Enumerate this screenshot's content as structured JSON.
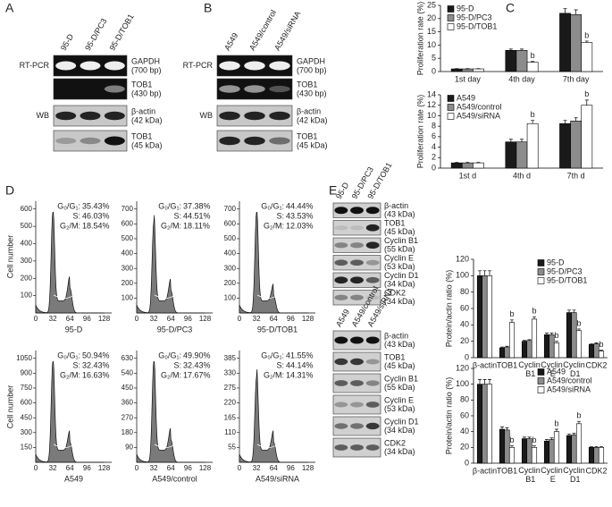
{
  "panel_labels": [
    "A",
    "B",
    "C",
    "D",
    "E"
  ],
  "blot_a": {
    "lanes": [
      "95-D",
      "95-D/PC3",
      "95-D/TOB1"
    ],
    "methods": [
      "RT-PCR",
      "WB"
    ],
    "rows": [
      {
        "name": "GAPDH",
        "size": "(700 bp)"
      },
      {
        "name": "TOB1",
        "size": "(430 bp)"
      },
      {
        "name": "β-actin",
        "size": "(42 kDa)"
      },
      {
        "name": "TOB1",
        "size": "(45 kDa)"
      }
    ]
  },
  "blot_b": {
    "lanes": [
      "A549",
      "A549/control",
      "A549/siRNA"
    ],
    "methods": [
      "RT-PCR",
      "WB"
    ],
    "rows": [
      {
        "name": "GAPDH",
        "size": "(700 bp)"
      },
      {
        "name": "TOB1",
        "size": "(430 bp)"
      },
      {
        "name": "β-actin",
        "size": "(42 kDa)"
      },
      {
        "name": "TOB1",
        "size": "(45 kDa)"
      }
    ]
  },
  "flow": {
    "phases": [
      "G₀/G₁:",
      "S:",
      "G₂/M:"
    ],
    "ylabel": "Cell number",
    "xticks": [
      "0",
      "32",
      "64",
      "96",
      "128"
    ],
    "panels": [
      {
        "name": "95-D",
        "stats": [
          "35.43%",
          "46.03%",
          "18.54%"
        ],
        "yticks": [
          "600",
          "500",
          "400",
          "300",
          "200",
          "100"
        ]
      },
      {
        "name": "95-D/PC3",
        "stats": [
          "37.38%",
          "44.51%",
          "18.11%"
        ],
        "yticks": [
          "700",
          "600",
          "500",
          "400",
          "300",
          "200",
          "100"
        ]
      },
      {
        "name": "95-D/TOB1",
        "stats": [
          "44.44%",
          "43.53%",
          "12.03%"
        ],
        "yticks": [
          "700",
          "600",
          "500",
          "400",
          "300",
          "200",
          "100"
        ]
      },
      {
        "name": "A549",
        "stats": [
          "50.94%",
          "32.43%",
          "16.63%"
        ],
        "yticks": [
          "1050",
          "900",
          "750",
          "600",
          "450",
          "300",
          "150"
        ]
      },
      {
        "name": "A549/control",
        "stats": [
          "49.90%",
          "32.43%",
          "17.67%"
        ],
        "yticks": [
          "630",
          "540",
          "450",
          "360",
          "270",
          "180",
          "90"
        ]
      },
      {
        "name": "A549/siRNA",
        "stats": [
          "41.55%",
          "44.14%",
          "14.31%"
        ],
        "yticks": [
          "385",
          "330",
          "275",
          "220",
          "165",
          "110",
          "55"
        ]
      }
    ]
  },
  "blot_e": [
    {
      "lanes": [
        "95-D",
        "95-D/PC3",
        "95-D/TOB1"
      ],
      "rows": [
        {
          "name": "β-actin",
          "size": "(43 kDa)"
        },
        {
          "name": "TOB1",
          "size": "(45 kDa)"
        },
        {
          "name": "Cyclin B1",
          "size": "(55 kDa)"
        },
        {
          "name": "Cyclin E",
          "size": "(53 kDa)"
        },
        {
          "name": "Cyclin D1",
          "size": "(34 kDa)"
        },
        {
          "name": "CDK2",
          "size": "(34 kDa)"
        }
      ]
    },
    {
      "lanes": [
        "A549",
        "A549/control",
        "A549/siRNA"
      ],
      "rows": [
        {
          "name": "β-actin",
          "size": "(43 kDa)"
        },
        {
          "name": "TOB1",
          "size": "(45 kDa)"
        },
        {
          "name": "Cyclin B1",
          "size": "(55 kDa)"
        },
        {
          "name": "Cyclin E",
          "size": "(53 kDa)"
        },
        {
          "name": "Cyclin D1",
          "size": "(34 kDa)"
        },
        {
          "name": "CDK2",
          "size": "(34 kDa)"
        }
      ]
    }
  ],
  "chart_data": [
    {
      "type": "bar",
      "ylabel": "Proliferation rate (%)",
      "categories": [
        "1st day",
        "4th day",
        "7th day"
      ],
      "ylim": [
        0,
        25
      ],
      "yticks": [
        0,
        5,
        10,
        15,
        20,
        25
      ],
      "legend": "upper left",
      "series": [
        {
          "name": "95-D",
          "color": "#1a1a1a",
          "values": [
            1,
            8,
            22
          ],
          "errors": [
            0.1,
            0.5,
            1.8
          ],
          "significance": [
            null,
            null,
            null
          ]
        },
        {
          "name": "95-D/PC3",
          "color": "#8c8c8c",
          "values": [
            1,
            8,
            21.5
          ],
          "errors": [
            0.1,
            0.5,
            1.8
          ],
          "significance": [
            null,
            null,
            null
          ]
        },
        {
          "name": "95-D/TOB1",
          "color": "#ffffff",
          "values": [
            1,
            3.5,
            11
          ],
          "errors": [
            0.1,
            0.3,
            0.5
          ],
          "significance": [
            null,
            "b",
            "b"
          ]
        }
      ]
    },
    {
      "type": "bar",
      "ylabel": "Proliferation rate (%)",
      "categories": [
        "1st d",
        "4th d",
        "7th d"
      ],
      "ylim": [
        0,
        14
      ],
      "yticks": [
        0,
        2,
        4,
        6,
        8,
        10,
        12,
        14
      ],
      "legend": "upper left",
      "series": [
        {
          "name": "A549",
          "color": "#1a1a1a",
          "values": [
            1,
            5,
            8.5
          ],
          "errors": [
            0.1,
            0.5,
            0.6
          ],
          "significance": [
            null,
            null,
            null
          ]
        },
        {
          "name": "A549/control",
          "color": "#8c8c8c",
          "values": [
            1,
            5,
            9
          ],
          "errors": [
            0.1,
            0.5,
            0.6
          ],
          "significance": [
            null,
            null,
            null
          ]
        },
        {
          "name": "A549/siRNA",
          "color": "#ffffff",
          "values": [
            1,
            8.5,
            12
          ],
          "errors": [
            0.1,
            0.6,
            1
          ],
          "significance": [
            null,
            "b",
            "b"
          ]
        }
      ]
    },
    {
      "type": "bar",
      "ylabel": "Protein/actin ratio (%)",
      "categories": [
        "β-actin",
        "TOB1",
        "Cyclin B1",
        "Cyclin E",
        "Cyclin D1",
        "CDK2"
      ],
      "ylim": [
        0,
        120
      ],
      "yticks": [
        0,
        20,
        40,
        60,
        80,
        100,
        120
      ],
      "legend": "upper right",
      "series": [
        {
          "name": "95-D",
          "color": "#1a1a1a",
          "values": [
            100,
            12,
            20,
            28,
            55,
            16
          ],
          "errors": [
            6,
            1,
            1,
            2,
            3,
            1
          ],
          "significance": [
            null,
            null,
            null,
            null,
            null,
            null
          ]
        },
        {
          "name": "95-D/PC3",
          "color": "#8c8c8c",
          "values": [
            100,
            13,
            21,
            28,
            55,
            17
          ],
          "errors": [
            6,
            1,
            1,
            2,
            3,
            1
          ],
          "significance": [
            null,
            null,
            null,
            null,
            null,
            null
          ]
        },
        {
          "name": "95-D/TOB1",
          "color": "#ffffff",
          "values": [
            100,
            43,
            47,
            18,
            33,
            8
          ],
          "errors": [
            6,
            3,
            3,
            2,
            2,
            1
          ],
          "significance": [
            null,
            "b",
            "b",
            "b",
            "b",
            "b"
          ]
        }
      ]
    },
    {
      "type": "bar",
      "ylabel": "Protein/actin ratio (%)",
      "categories": [
        "β-actin",
        "TOB1",
        "Cyclin B1",
        "Cyclin E",
        "Cyclin D1",
        "CDK2"
      ],
      "ylim": [
        0,
        120
      ],
      "yticks": [
        0,
        20,
        40,
        60,
        80,
        100,
        120
      ],
      "legend": "upper right",
      "series": [
        {
          "name": "A549",
          "color": "#1a1a1a",
          "values": [
            100,
            43,
            31,
            28,
            35,
            20
          ],
          "errors": [
            6,
            3,
            2,
            2,
            2,
            1
          ],
          "significance": [
            null,
            null,
            null,
            null,
            null,
            null
          ]
        },
        {
          "name": "A549/control",
          "color": "#8c8c8c",
          "values": [
            100,
            42,
            31,
            30,
            36,
            20
          ],
          "errors": [
            6,
            3,
            2,
            2,
            2,
            1
          ],
          "significance": [
            null,
            null,
            null,
            null,
            null,
            null
          ]
        },
        {
          "name": "A549/siRNA",
          "color": "#ffffff",
          "values": [
            100,
            20,
            20,
            40,
            50,
            20
          ],
          "errors": [
            6,
            2,
            2,
            3,
            3,
            1
          ],
          "significance": [
            null,
            "b",
            "b",
            "b",
            "b",
            null
          ]
        }
      ]
    }
  ]
}
